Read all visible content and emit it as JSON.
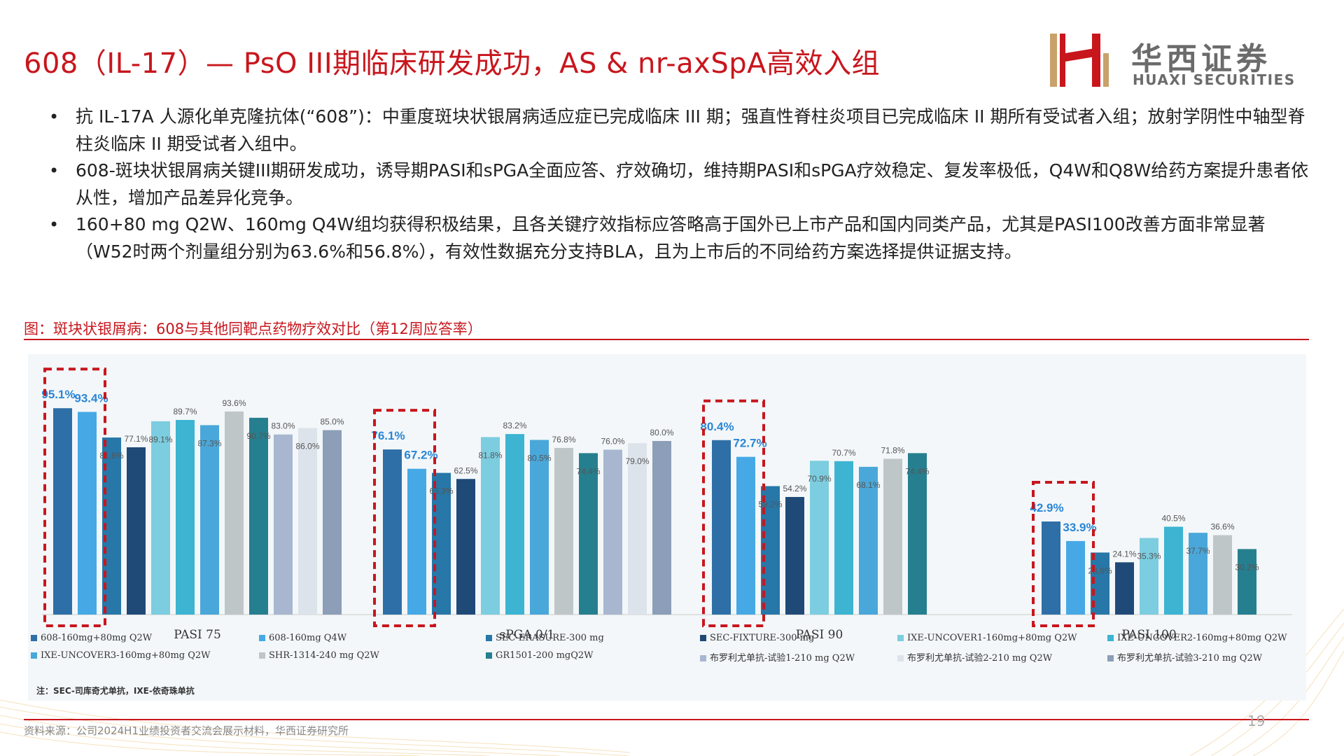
{
  "title": "608（IL-17）— PsO III期临床研发成功，AS & nr-axSpA高效入组",
  "logo": {
    "cn": "华西证券",
    "en": "HUAXI SECURITIES"
  },
  "bullets": [
    "抗 IL-17A 人源化单克隆抗体(“608”)：中重度斑块状银屑病适应症已完成临床 III 期；强直性脊柱炎项目已完成临床 II 期所有受试者入组；放射学阴性中轴型脊柱炎临床 II 期受试者入组中。",
    "608-斑块状银屑病关键III期研发成功，诱导期PASI和sPGA全面应答、疗效确切，维持期PASI和sPGA疗效稳定、复发率极低，Q4W和Q8W给药方案提升患者依从性，增加产品差异化竞争。",
    "160+80 mg Q2W、160mg Q4W组均获得积极结果，且各关键疗效指标应答略高于国外已上市产品和国内同类产品，尤其是PASI100改善方面非常显著（W52时两个剂量组分别为63.6%和56.8%），有效性数据充分支持BLA，且为上市后的不同给药方案选择提供证据支持。"
  ],
  "figure_caption": "图：斑块状银屑病：608与其他同靶点药物疗效对比（第12周应答率）",
  "chart_data": {
    "type": "bar",
    "categories": [
      "PASI 75",
      "sPGA 0/1",
      "PASI 90",
      "PASI 100"
    ],
    "series": [
      {
        "name": "608-160mg+80mg Q2W",
        "color": "#2e6fa7",
        "values": [
          95.1,
          76.1,
          80.4,
          42.9
        ]
      },
      {
        "name": "608-160mg Q4W",
        "color": "#46a9e6",
        "values": [
          93.4,
          67.2,
          72.7,
          33.9
        ]
      },
      {
        "name": "SEC-ERASURE-300 mg",
        "color": "#2777a8",
        "values": [
          81.6,
          65.3,
          59.2,
          28.6
        ]
      },
      {
        "name": "SEC-FIXTURE-300 mg",
        "color": "#1f4a78",
        "values": [
          77.1,
          62.5,
          54.2,
          24.1
        ]
      },
      {
        "name": "IXE-UNCOVER1-160mg+80mg Q2W",
        "color": "#7ccde0",
        "values": [
          89.1,
          81.8,
          70.9,
          35.3
        ]
      },
      {
        "name": "IXE-UNCOVER2-160mg+80mg Q2W",
        "color": "#3cb4d2",
        "values": [
          89.7,
          83.2,
          70.7,
          40.5
        ]
      },
      {
        "name": "IXE-UNCOVER3-160mg+80mg Q2W",
        "color": "#4aa7d9",
        "values": [
          87.3,
          80.5,
          68.1,
          37.7
        ]
      },
      {
        "name": "SHR-1314-240 mg Q2W",
        "color": "#bfc6c8",
        "values": [
          93.6,
          76.8,
          71.8,
          36.6
        ]
      },
      {
        "name": "GR1501-200 mgQ2W",
        "color": "#267f8f",
        "values": [
          90.7,
          74.4,
          74.4,
          30.2
        ]
      },
      {
        "name": "布罗利尤单抗-试验1-210 mg Q2W",
        "color": "#a8b7cf",
        "values": [
          83.0,
          76.0,
          null,
          null
        ]
      },
      {
        "name": "布罗利尤单抗-试验2-210 mg Q2W",
        "color": "#dde3ea",
        "values": [
          86.0,
          79.0,
          null,
          null
        ]
      },
      {
        "name": "布罗利尤单抗-试验3-210 mg Q2W",
        "color": "#8c9eb8",
        "values": [
          85.0,
          80.0,
          null,
          null
        ]
      }
    ],
    "data_labels": [
      [
        "95.1%",
        "93.4%",
        "81.6%",
        "77.1%",
        "89.1%",
        "89.7%",
        "87.3%",
        "93.6%",
        "90.7%",
        "83.0%",
        "86.0%",
        "85.0%"
      ],
      [
        "76.1%",
        "67.2%",
        "65.3%",
        "62.5%",
        "81.8%",
        "83.2%",
        "80.5%",
        "76.8%",
        "74.4%",
        "76.0%",
        "79.0%",
        "80.0%"
      ],
      [
        "80.4%",
        "72.7%",
        "59.2%",
        "54.2%",
        "70.9%",
        "70.7%",
        "68.1%",
        "71.8%",
        "74.4%",
        "",
        "",
        ""
      ],
      [
        "42.9%",
        "33.9%",
        "28.6%",
        "24.1%",
        "35.3%",
        "40.5%",
        "37.7%",
        "36.6%",
        "30.2%",
        "",
        "",
        ""
      ]
    ],
    "ylim": [
      0,
      100
    ],
    "grid": false,
    "legend_position": "bottom",
    "highlight": "608 series boxed with red dashed border in each group"
  },
  "note": "注：SEC-司库奇尤单抗，IXE-依奇珠单抗",
  "source": "资料来源：公司2024H1业绩投资者交流会展示材料，华西证券研究所",
  "page_number": "19"
}
